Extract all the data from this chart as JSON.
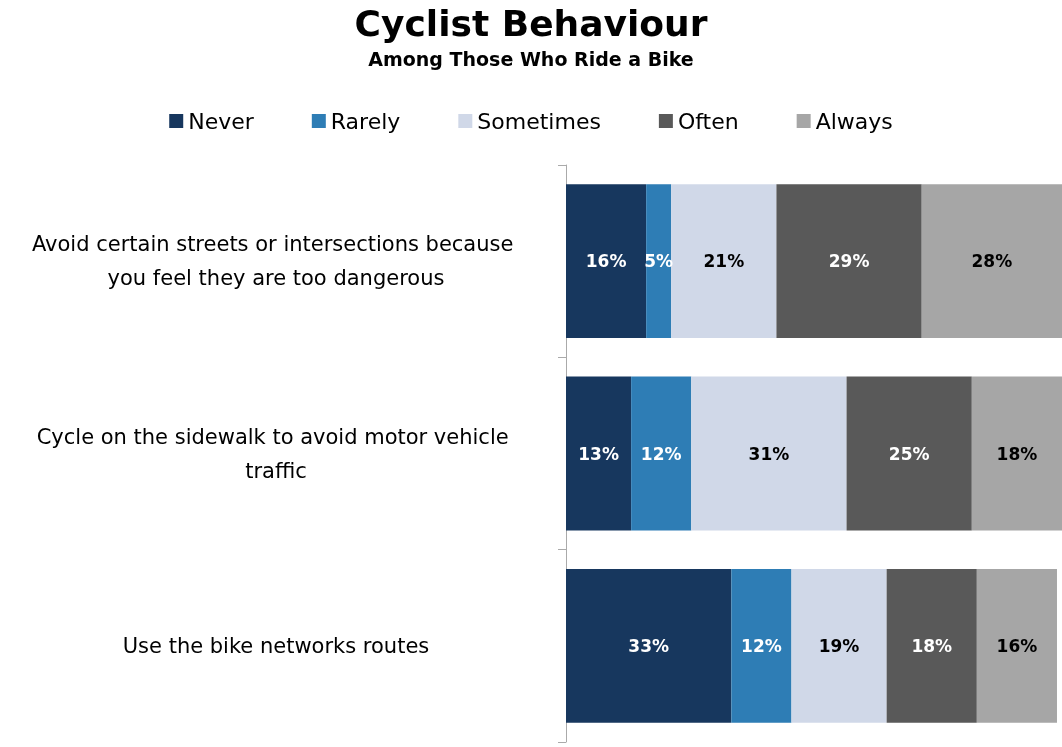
{
  "chart_data": {
    "type": "bar",
    "orientation": "horizontal",
    "stacked": true,
    "title": "Cyclist Behaviour",
    "subtitle": "Among Those Who Ride a Bike",
    "categories": [
      "Avoid certain streets or intersections because you feel they are too dangerous",
      "Cycle on the sidewalk to avoid motor vehicle traffic",
      "Use the bike networks routes"
    ],
    "series": [
      {
        "name": "Never",
        "color": "#17375e",
        "values": [
          16,
          13,
          33
        ],
        "value_labels": [
          "16%",
          "13%",
          "33%"
        ]
      },
      {
        "name": "Rarely",
        "color": "#2e7db5",
        "values": [
          5,
          12,
          12
        ],
        "value_labels": [
          "5%",
          "12%",
          "12%"
        ]
      },
      {
        "name": "Sometimes",
        "color": "#d0d8e8",
        "values": [
          21,
          31,
          19
        ],
        "value_labels": [
          "21%",
          "31%",
          "19%"
        ]
      },
      {
        "name": "Often",
        "color": "#595959",
        "values": [
          29,
          25,
          18
        ],
        "value_labels": [
          "29%",
          "25%",
          "18%"
        ]
      },
      {
        "name": "Always",
        "color": "#a6a6a6",
        "values": [
          28,
          18,
          16
        ],
        "value_labels": [
          "28%",
          "18%",
          "16%"
        ]
      }
    ],
    "legend": "top",
    "grid": false
  }
}
